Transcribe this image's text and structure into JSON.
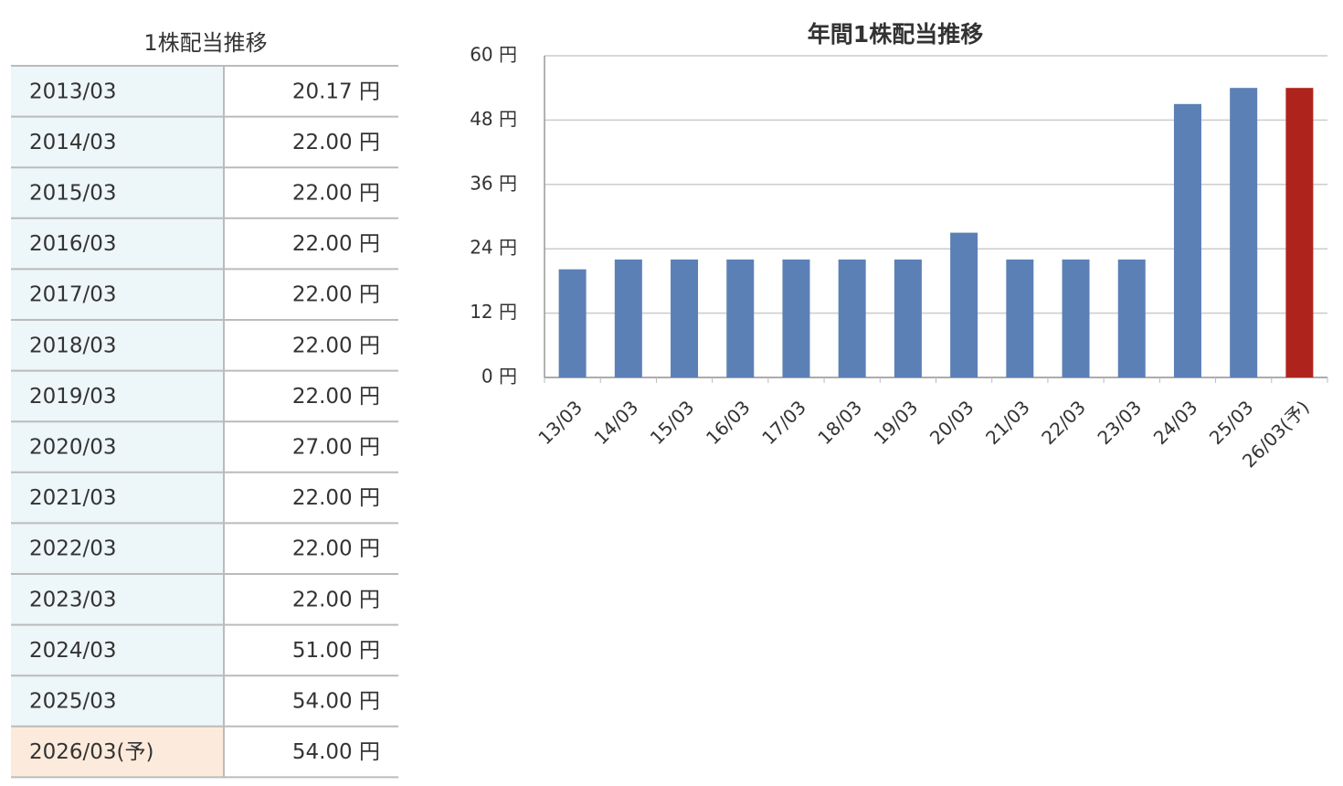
{
  "table": {
    "title": "1株配当推移",
    "rows": [
      [
        "2013/03",
        "20.17 円"
      ],
      [
        "2014/03",
        "22.00 円"
      ],
      [
        "2015/03",
        "22.00 円"
      ],
      [
        "2016/03",
        "22.00 円"
      ],
      [
        "2017/03",
        "22.00 円"
      ],
      [
        "2018/03",
        "22.00 円"
      ],
      [
        "2019/03",
        "22.00 円"
      ],
      [
        "2020/03",
        "27.00 円"
      ],
      [
        "2021/03",
        "22.00 円"
      ],
      [
        "2022/03",
        "22.00 円"
      ],
      [
        "2023/03",
        "22.00 円"
      ],
      [
        "2024/03",
        "51.00 円"
      ],
      [
        "2025/03",
        "54.00 円"
      ],
      [
        "2026/03(予)",
        "54.00 円"
      ]
    ]
  },
  "chart_data": {
    "type": "bar",
    "title": "年間1株配当推移",
    "categories": [
      "13/03",
      "14/03",
      "15/03",
      "16/03",
      "17/03",
      "18/03",
      "19/03",
      "20/03",
      "21/03",
      "22/03",
      "23/03",
      "24/03",
      "25/03",
      "26/03(予)"
    ],
    "values": [
      20.17,
      22,
      22,
      22,
      22,
      22,
      22,
      27,
      22,
      22,
      22,
      51,
      54,
      54
    ],
    "colors": [
      "#5b80b6",
      "#5b80b6",
      "#5b80b6",
      "#5b80b6",
      "#5b80b6",
      "#5b80b6",
      "#5b80b6",
      "#5b80b6",
      "#5b80b6",
      "#5b80b6",
      "#5b80b6",
      "#5b80b6",
      "#5b80b6",
      "#ae241c"
    ],
    "ylim": [
      0,
      60
    ],
    "yticks": [
      {
        "value": 0,
        "label": "0 円"
      },
      {
        "value": 12,
        "label": "12 円"
      },
      {
        "value": 24,
        "label": "24 円"
      },
      {
        "value": 36,
        "label": "36 円"
      },
      {
        "value": 48,
        "label": "48 円"
      },
      {
        "value": 60,
        "label": "60 円"
      }
    ],
    "grid": true
  }
}
